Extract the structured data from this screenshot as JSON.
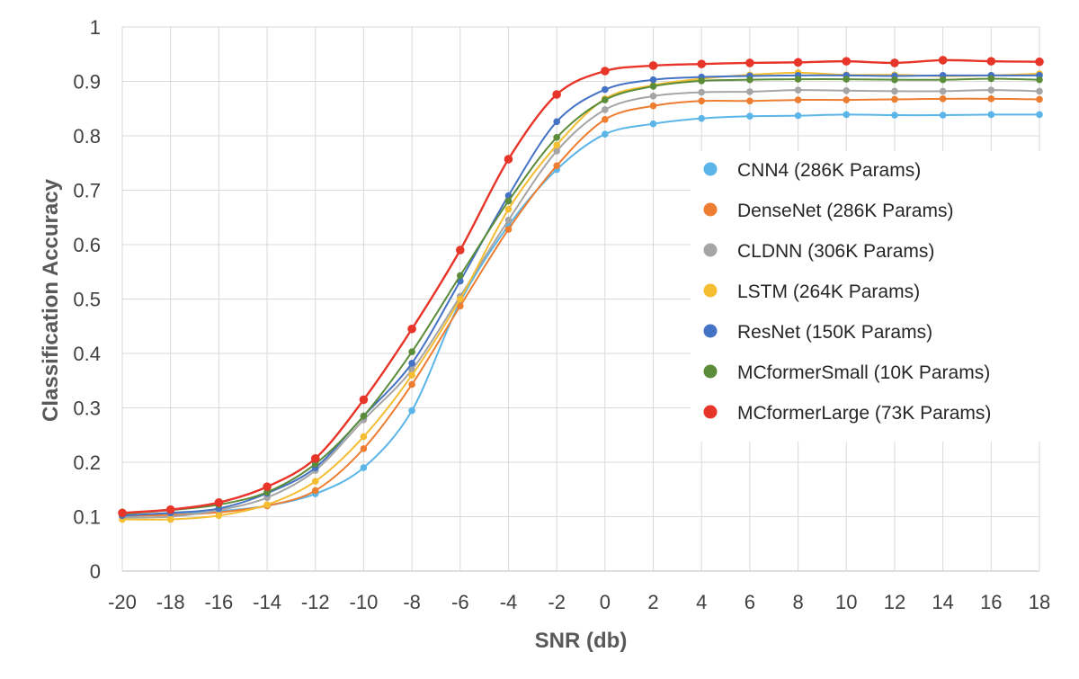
{
  "chart_data": {
    "type": "line",
    "title": "",
    "xlabel": "SNR (db)",
    "ylabel": "Classification Accuracy",
    "xlim": [
      -20,
      18
    ],
    "ylim": [
      0,
      1
    ],
    "grid": true,
    "legend_position": "right",
    "x": [
      -20,
      -18,
      -16,
      -14,
      -12,
      -10,
      -8,
      -6,
      -4,
      -2,
      0,
      2,
      4,
      6,
      8,
      10,
      12,
      14,
      16,
      18
    ],
    "x_tick_labels": [
      "-20",
      "-18",
      "-16",
      "-14",
      "-12",
      "-10",
      "-8",
      "-6",
      "-4",
      "-2",
      "0",
      "2",
      "4",
      "6",
      "8",
      "10",
      "12",
      "14",
      "16",
      "18"
    ],
    "y_ticks": [
      0,
      0.1,
      0.2,
      0.3,
      0.4,
      0.5,
      0.6,
      0.7,
      0.8,
      0.9,
      1
    ],
    "y_tick_labels": [
      "0",
      "0.1",
      "0.2",
      "0.3",
      "0.4",
      "0.5",
      "0.6",
      "0.7",
      "0.8",
      "0.9",
      "1"
    ],
    "series": [
      {
        "name": "CNN4 (286K Params)",
        "color": "#5BB5E8",
        "values": [
          0.1,
          0.105,
          0.11,
          0.12,
          0.142,
          0.19,
          0.295,
          0.495,
          0.635,
          0.738,
          0.803,
          0.822,
          0.832,
          0.836,
          0.837,
          0.839,
          0.838,
          0.838,
          0.839,
          0.839
        ]
      },
      {
        "name": "DenseNet (286K Params)",
        "color": "#ED7D31",
        "values": [
          0.102,
          0.103,
          0.108,
          0.12,
          0.148,
          0.225,
          0.343,
          0.487,
          0.628,
          0.745,
          0.83,
          0.855,
          0.864,
          0.864,
          0.866,
          0.866,
          0.867,
          0.868,
          0.868,
          0.867
        ]
      },
      {
        "name": "CLDNN (306K Params)",
        "color": "#A5A5A5",
        "values": [
          0.098,
          0.1,
          0.112,
          0.135,
          0.185,
          0.278,
          0.37,
          0.505,
          0.645,
          0.772,
          0.848,
          0.873,
          0.88,
          0.881,
          0.884,
          0.883,
          0.882,
          0.882,
          0.884,
          0.882
        ]
      },
      {
        "name": "LSTM (264K Params)",
        "color": "#F4BD32",
        "values": [
          0.095,
          0.095,
          0.102,
          0.122,
          0.165,
          0.247,
          0.36,
          0.5,
          0.665,
          0.783,
          0.868,
          0.893,
          0.905,
          0.912,
          0.916,
          0.912,
          0.912,
          0.91,
          0.911,
          0.914
        ]
      },
      {
        "name": "ResNet (150K Params)",
        "color": "#4472C4",
        "values": [
          0.102,
          0.107,
          0.115,
          0.143,
          0.19,
          0.285,
          0.382,
          0.533,
          0.69,
          0.826,
          0.885,
          0.903,
          0.908,
          0.91,
          0.911,
          0.911,
          0.91,
          0.911,
          0.911,
          0.911
        ]
      },
      {
        "name": "MCformerSmall (10K Params)",
        "color": "#5B8C3A",
        "values": [
          0.105,
          0.112,
          0.122,
          0.145,
          0.197,
          0.285,
          0.403,
          0.543,
          0.68,
          0.797,
          0.866,
          0.891,
          0.901,
          0.903,
          0.904,
          0.904,
          0.903,
          0.903,
          0.905,
          0.903
        ]
      },
      {
        "name": "MCformerLarge (73K Params)",
        "color": "#E8352A",
        "values": [
          0.107,
          0.113,
          0.126,
          0.155,
          0.207,
          0.315,
          0.445,
          0.59,
          0.757,
          0.876,
          0.919,
          0.929,
          0.932,
          0.934,
          0.935,
          0.937,
          0.934,
          0.939,
          0.937,
          0.936
        ]
      }
    ]
  }
}
